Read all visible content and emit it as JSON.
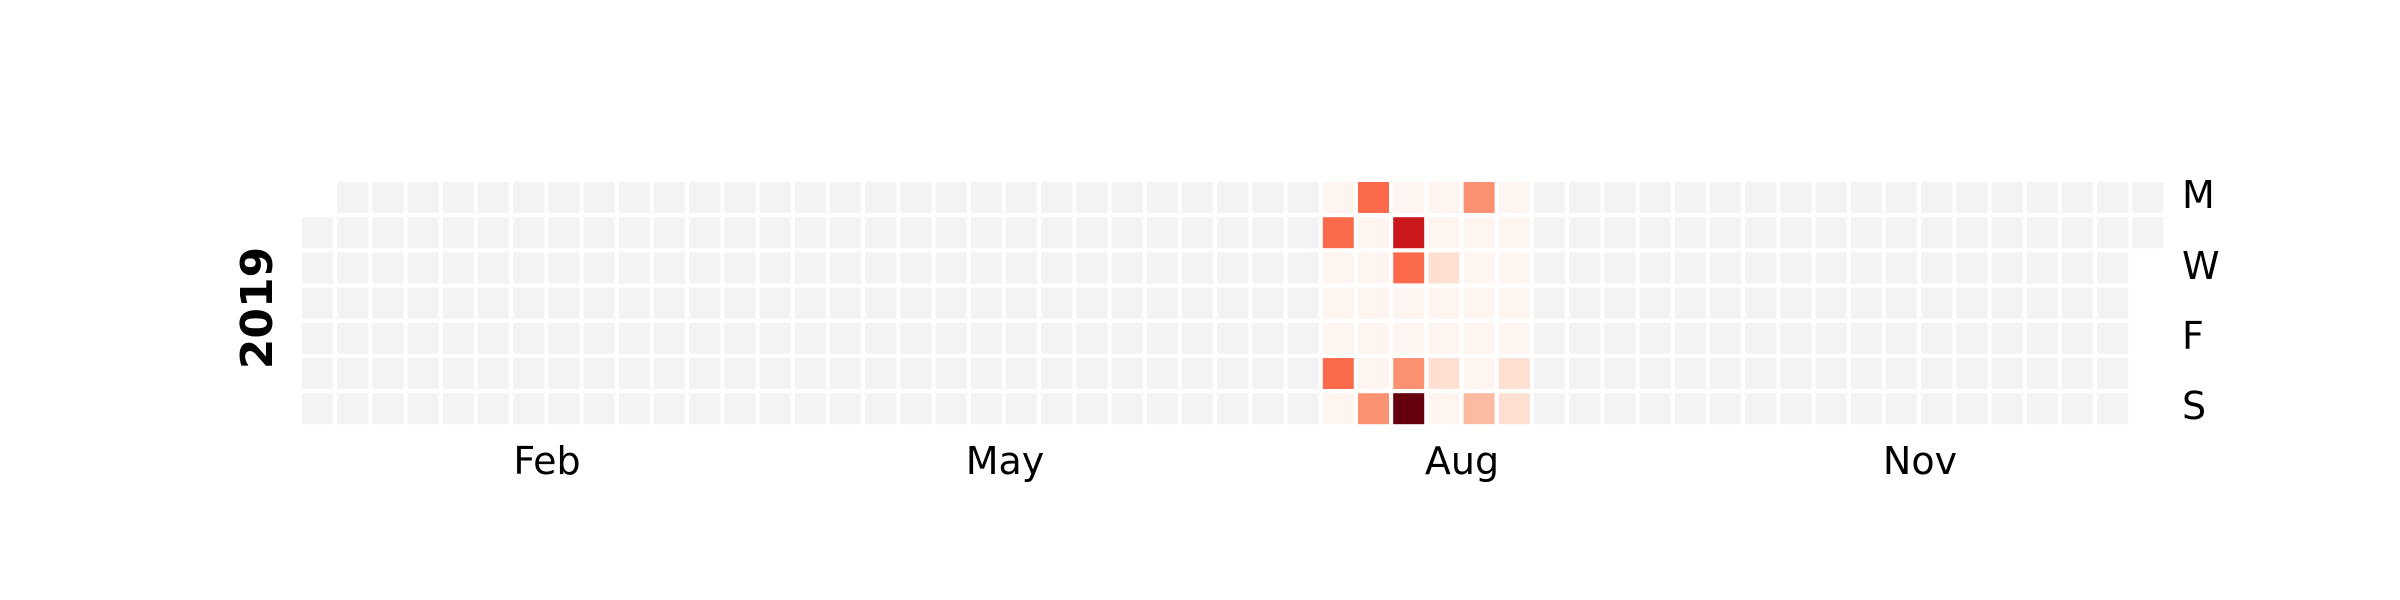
{
  "chart_data": {
    "type": "heatmap",
    "year": "2019",
    "month_labels": [
      "Feb",
      "May",
      "Aug",
      "Nov"
    ],
    "weekday_labels": [
      "M",
      "W",
      "F",
      "S"
    ],
    "colors": {
      "background": "#ffffff",
      "empty": "#f3f3f3",
      "scale": [
        "#fff5f0",
        "#fee0d2",
        "#fcbba1",
        "#fc9272",
        "#fb6a4a",
        "#ef3b2c",
        "#cb181d",
        "#a50f15",
        "#67000d"
      ]
    },
    "value_range": [
      0,
      1
    ],
    "nonzero_days": [
      {
        "date": "2019-07-22",
        "value": 0.0
      },
      {
        "date": "2019-07-23",
        "value": 0.48
      },
      {
        "date": "2019-07-24",
        "value": 0.02
      },
      {
        "date": "2019-07-25",
        "value": 0.02
      },
      {
        "date": "2019-07-26",
        "value": 0.02
      },
      {
        "date": "2019-07-27",
        "value": 0.46
      },
      {
        "date": "2019-07-28",
        "value": 0.02
      },
      {
        "date": "2019-07-29",
        "value": 0.44
      },
      {
        "date": "2019-07-30",
        "value": 0.0
      },
      {
        "date": "2019-07-31",
        "value": 0.0
      },
      {
        "date": "2019-08-01",
        "value": 0.02
      },
      {
        "date": "2019-08-02",
        "value": 0.02
      },
      {
        "date": "2019-08-03",
        "value": 0.02
      },
      {
        "date": "2019-08-04",
        "value": 0.4
      },
      {
        "date": "2019-08-05",
        "value": 0.0
      },
      {
        "date": "2019-08-06",
        "value": 0.75
      },
      {
        "date": "2019-08-07",
        "value": 0.52
      },
      {
        "date": "2019-08-08",
        "value": 0.02
      },
      {
        "date": "2019-08-09",
        "value": 0.02
      },
      {
        "date": "2019-08-10",
        "value": 0.38
      },
      {
        "date": "2019-08-11",
        "value": 1.0
      },
      {
        "date": "2019-08-12",
        "value": 0.02
      },
      {
        "date": "2019-08-13",
        "value": 0.02
      },
      {
        "date": "2019-08-14",
        "value": 0.18
      },
      {
        "date": "2019-08-15",
        "value": 0.02
      },
      {
        "date": "2019-08-16",
        "value": 0.02
      },
      {
        "date": "2019-08-17",
        "value": 0.08
      },
      {
        "date": "2019-08-18",
        "value": 0.02
      },
      {
        "date": "2019-08-19",
        "value": 0.4
      },
      {
        "date": "2019-08-20",
        "value": 0.04
      },
      {
        "date": "2019-08-21",
        "value": 0.02
      },
      {
        "date": "2019-08-22",
        "value": 0.02
      },
      {
        "date": "2019-08-23",
        "value": 0.02
      },
      {
        "date": "2019-08-24",
        "value": 0.04
      },
      {
        "date": "2019-08-25",
        "value": 0.26
      },
      {
        "date": "2019-08-26",
        "value": 0.04
      },
      {
        "date": "2019-08-27",
        "value": 0.02
      },
      {
        "date": "2019-08-28",
        "value": 0.02
      },
      {
        "date": "2019-08-29",
        "value": 0.02
      },
      {
        "date": "2019-08-30",
        "value": 0.02
      },
      {
        "date": "2019-08-31",
        "value": 0.1
      },
      {
        "date": "2019-09-01",
        "value": 0.18
      }
    ]
  }
}
